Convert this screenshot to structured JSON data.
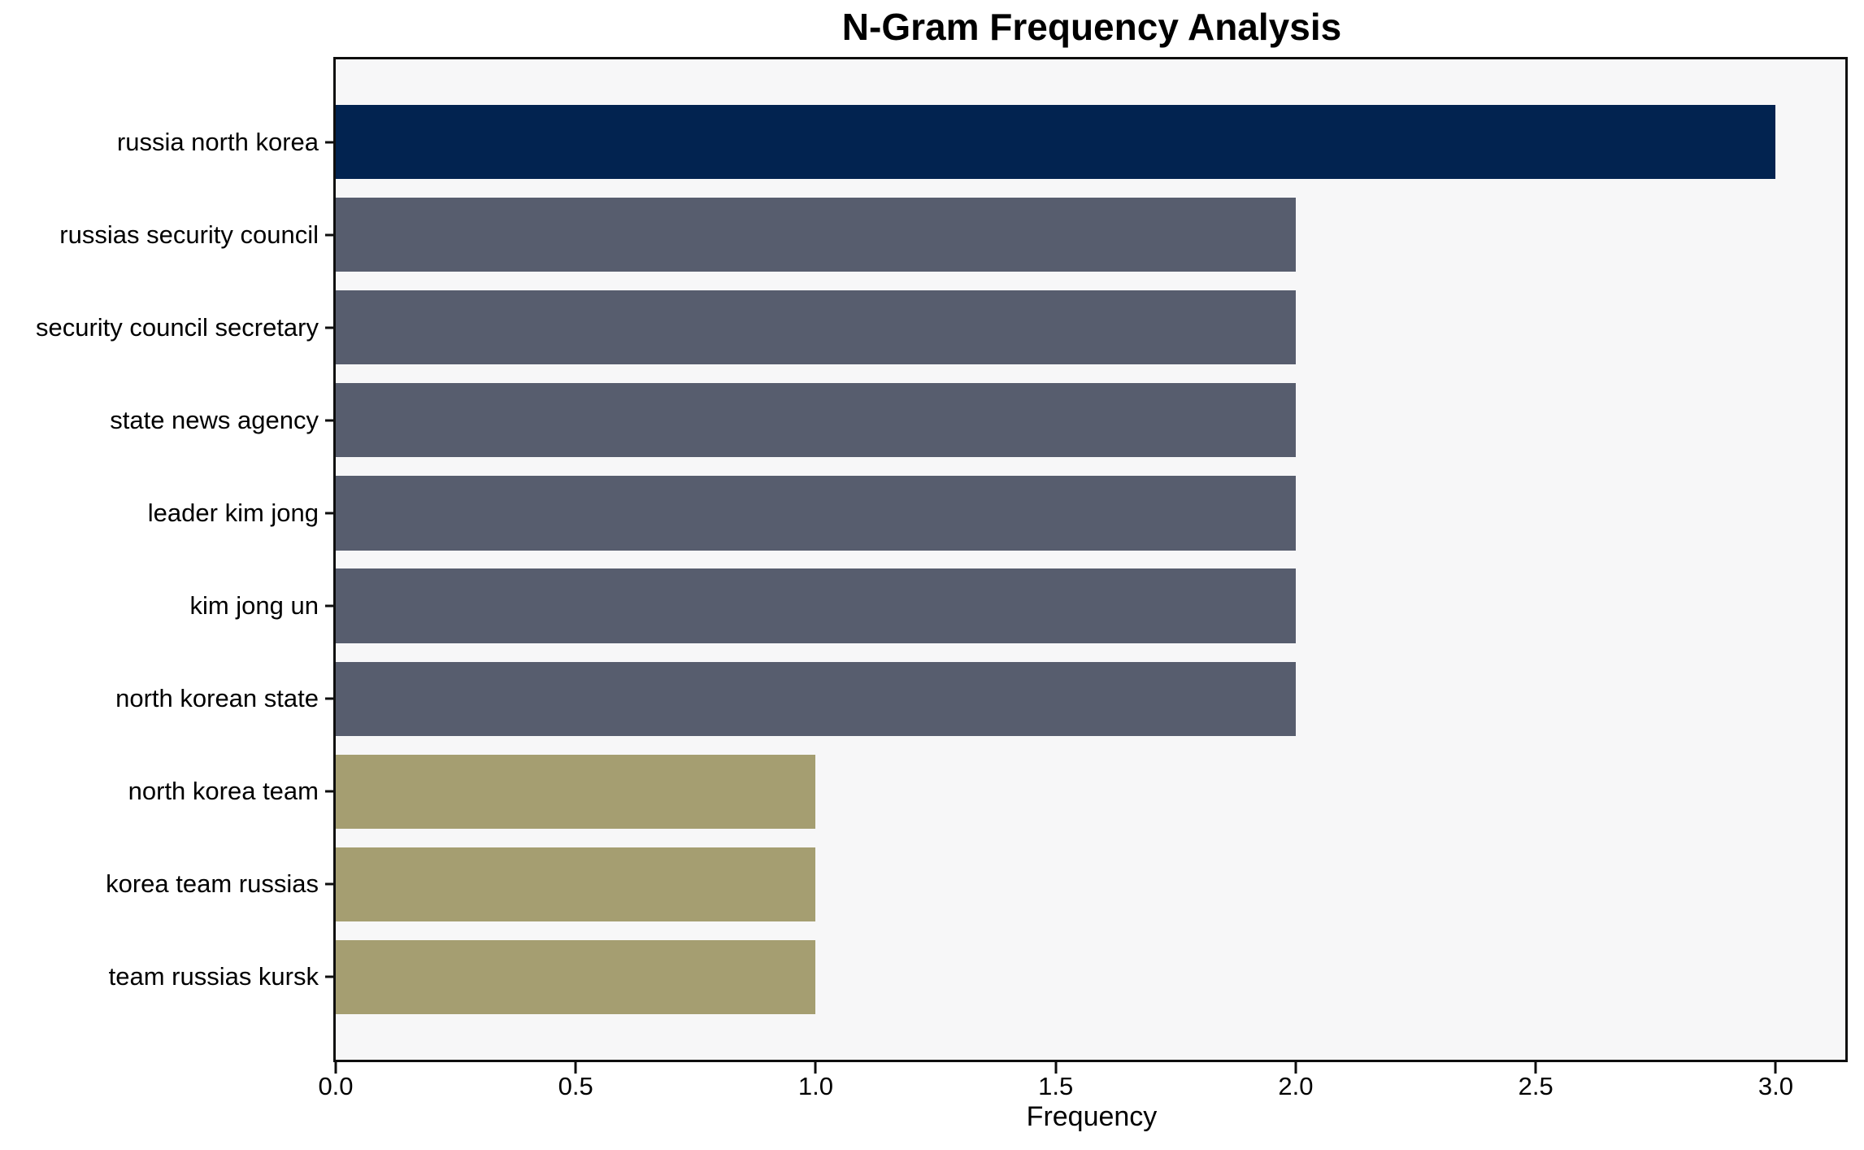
{
  "chart_data": {
    "type": "bar",
    "orientation": "horizontal",
    "title": "N-Gram Frequency Analysis",
    "xlabel": "Frequency",
    "ylabel": "",
    "categories": [
      "russia north korea",
      "russias security council",
      "security council secretary",
      "state news agency",
      "leader kim jong",
      "kim jong un",
      "north korean state",
      "north korea team",
      "korea team russias",
      "team russias kursk"
    ],
    "values": [
      3,
      2,
      2,
      2,
      2,
      2,
      2,
      1,
      1,
      1
    ],
    "bar_colors": [
      "#022350",
      "#575d6e",
      "#575d6e",
      "#575d6e",
      "#575d6e",
      "#575d6e",
      "#575d6e",
      "#a59e71",
      "#a59e71",
      "#a59e71"
    ],
    "xlim": [
      0,
      3.15
    ],
    "x_tick_values": [
      0,
      0.5,
      1,
      1.5,
      2,
      2.5,
      3
    ],
    "x_tick_labels": [
      "0.0",
      "0.5",
      "1.0",
      "1.5",
      "2.0",
      "2.5",
      "3.0"
    ],
    "grid": false,
    "legend_position": "none",
    "colors": {
      "max_value_bar": "#022350",
      "mid_value_bar": "#575d6e",
      "low_value_bar": "#a59e71",
      "plot_background": "#f7f7f8",
      "figure_background": "#ffffff",
      "spine": "#0e0e0e",
      "text": "#000000"
    }
  }
}
